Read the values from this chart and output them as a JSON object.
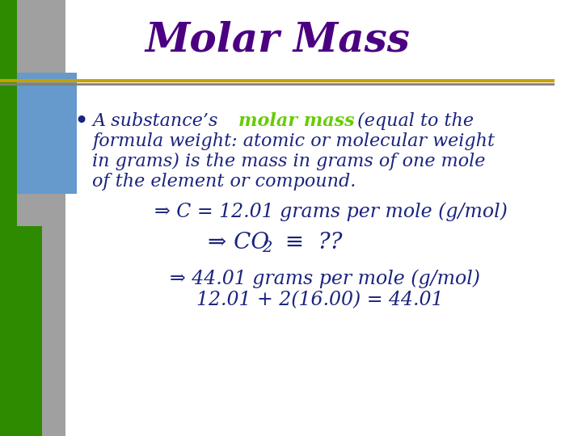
{
  "title": "Molar Mass",
  "title_color": "#4B0082",
  "title_fontsize": 36,
  "bg_color": "#FFFFFF",
  "left_bar_colors": [
    "#2E8B00",
    "#6699CC",
    "#2E8B00"
  ],
  "left_bar2_color": "#808080",
  "line_color": "#C8A000",
  "line2_color": "#808080",
  "bullet_color": "#1A237E",
  "bullet_text_color": "#1A237E",
  "molar_mass_color": "#66CC00",
  "arrow_color": "#808080",
  "body_text": "A substance’s  (equal to the\nformula weight: atomic or molecular weight\nin grams) is the mass in grams of one mole\nof the element or compound.",
  "molar_mass_label": "molar mass",
  "line1": "⇒ C = 12.01 grams per mole (g/mol)",
  "line2_pre": "⇒ CO",
  "line2_sub": "2",
  "line2_post": "  ≡  ??",
  "line3": "⇒ 44.01 grams per mole (g/mol)",
  "line4": "12.01 + 2(16.00) = 44.01",
  "text_color": "#1A237E",
  "sub_text_fontsize": 20
}
